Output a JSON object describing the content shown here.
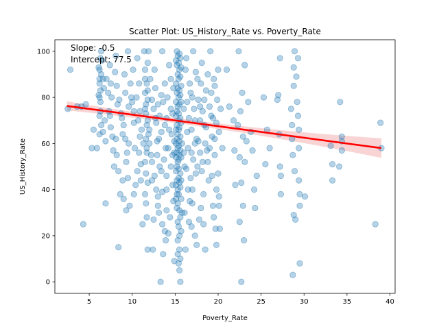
{
  "chart_data": {
    "type": "scatter",
    "title": "Scatter Plot: US_History_Rate vs. Poverty_Rate",
    "xlabel": "Poverty_Rate",
    "ylabel": "US_History_Rate",
    "xlim": [
      1,
      40.6
    ],
    "ylim": [
      -5,
      105
    ],
    "xticks": [
      5,
      10,
      15,
      20,
      25,
      30,
      35,
      40
    ],
    "yticks": [
      0,
      20,
      40,
      60,
      80,
      100
    ],
    "annotations": [
      "Slope: -0.5",
      "Intercept: 77.5"
    ],
    "regression": {
      "slope": -0.5,
      "intercept": 77.5,
      "x_range": [
        2.4,
        39
      ]
    },
    "colors": {
      "points": "#1f77b4",
      "regression_line": "#ff0000",
      "confidence_band": "#f4a9a9"
    },
    "points": [
      [
        2.5,
        75
      ],
      [
        2.8,
        92
      ],
      [
        3.6,
        76
      ],
      [
        4.1,
        76
      ],
      [
        4.3,
        25
      ],
      [
        4.6,
        77
      ],
      [
        5.3,
        58
      ],
      [
        5.5,
        66
      ],
      [
        5.9,
        58
      ],
      [
        6.1,
        93
      ],
      [
        6.2,
        88
      ],
      [
        6.2,
        80
      ],
      [
        6.4,
        100
      ],
      [
        6.5,
        96
      ],
      [
        6.6,
        88
      ],
      [
        6.7,
        84
      ],
      [
        6.3,
        78
      ],
      [
        6.8,
        70
      ],
      [
        6.6,
        65
      ],
      [
        6.9,
        61
      ],
      [
        6.9,
        34
      ],
      [
        7.4,
        94
      ],
      [
        7.5,
        86
      ],
      [
        7.6,
        80
      ],
      [
        7.4,
        72
      ],
      [
        7.5,
        67
      ],
      [
        7.7,
        63
      ],
      [
        7.8,
        57
      ],
      [
        8.1,
        98
      ],
      [
        8.3,
        77
      ],
      [
        8.2,
        55
      ],
      [
        8.4,
        48
      ],
      [
        8.6,
        38
      ],
      [
        8.4,
        15
      ],
      [
        8.8,
        71
      ],
      [
        8.9,
        64
      ],
      [
        9.1,
        90
      ],
      [
        9.2,
        82
      ],
      [
        9.0,
        36
      ],
      [
        9.3,
        31
      ],
      [
        9.5,
        100
      ],
      [
        9.6,
        76
      ],
      [
        9.5,
        45
      ],
      [
        9.7,
        33
      ],
      [
        9.9,
        80
      ],
      [
        10.1,
        92
      ],
      [
        10.2,
        69
      ],
      [
        10.3,
        58
      ],
      [
        10.4,
        42
      ],
      [
        10.6,
        97
      ],
      [
        10.8,
        86
      ],
      [
        10.9,
        63
      ],
      [
        11.0,
        51
      ],
      [
        11.2,
        25
      ],
      [
        11.4,
        100
      ],
      [
        11.5,
        75
      ],
      [
        11.5,
        38
      ],
      [
        11.8,
        83
      ],
      [
        11.8,
        14
      ],
      [
        12.0,
        66
      ],
      [
        12.2,
        55
      ],
      [
        12.3,
        44
      ],
      [
        12.4,
        14
      ],
      [
        12.6,
        92
      ],
      [
        12.7,
        71
      ],
      [
        12.9,
        61
      ],
      [
        13.0,
        37
      ],
      [
        13.1,
        30
      ],
      [
        13.2,
        50
      ],
      [
        13.3,
        0
      ],
      [
        13.4,
        81
      ],
      [
        13.5,
        100
      ],
      [
        13.5,
        25
      ],
      [
        13.6,
        12
      ],
      [
        13.8,
        68
      ],
      [
        13.9,
        58
      ],
      [
        14.0,
        40
      ],
      [
        14.2,
        21
      ],
      [
        14.3,
        94
      ],
      [
        14.5,
        75
      ],
      [
        14.6,
        64
      ],
      [
        14.7,
        55
      ],
      [
        14.8,
        35
      ],
      [
        14.9,
        9
      ],
      [
        15.2,
        100
      ],
      [
        15.3,
        90
      ],
      [
        15.4,
        70
      ],
      [
        15.4,
        45
      ],
      [
        15.5,
        20
      ],
      [
        15.6,
        0
      ],
      [
        15.7,
        85
      ],
      [
        15.8,
        60
      ],
      [
        15.8,
        30
      ],
      [
        16.0,
        75
      ],
      [
        16.1,
        50
      ],
      [
        16.2,
        14
      ],
      [
        16.3,
        97
      ],
      [
        16.4,
        65
      ],
      [
        16.5,
        40
      ],
      [
        16.6,
        26
      ],
      [
        16.8,
        82
      ],
      [
        16.9,
        56
      ],
      [
        17.0,
        34
      ],
      [
        17.1,
        100
      ],
      [
        17.3,
        70
      ],
      [
        17.4,
        47
      ],
      [
        17.5,
        16
      ],
      [
        17.6,
        88
      ],
      [
        17.7,
        61
      ],
      [
        17.8,
        27
      ],
      [
        17.9,
        76
      ],
      [
        18.1,
        95
      ],
      [
        18.2,
        52
      ],
      [
        18.3,
        38
      ],
      [
        18.4,
        68
      ],
      [
        18.5,
        14
      ],
      [
        18.6,
        83
      ],
      [
        18.7,
        57
      ],
      [
        18.9,
        44
      ],
      [
        19.1,
        100
      ],
      [
        19.2,
        72
      ],
      [
        19.3,
        63
      ],
      [
        19.4,
        33
      ],
      [
        19.5,
        88
      ],
      [
        19.6,
        55
      ],
      [
        19.7,
        23
      ],
      [
        19.8,
        16
      ],
      [
        19.9,
        79
      ],
      [
        20.0,
        92
      ],
      [
        20.0,
        47
      ],
      [
        20.1,
        65
      ],
      [
        20.1,
        37
      ],
      [
        20.3,
        75
      ],
      [
        20.5,
        58
      ],
      [
        21.0,
        92
      ],
      [
        21.3,
        76
      ],
      [
        21.8,
        70
      ],
      [
        21.9,
        57
      ],
      [
        22.0,
        42
      ],
      [
        22.3,
        68
      ],
      [
        22.4,
        100
      ],
      [
        22.5,
        54
      ],
      [
        22.5,
        26
      ],
      [
        22.6,
        74
      ],
      [
        22.7,
        43
      ],
      [
        22.7,
        0
      ],
      [
        22.8,
        82
      ],
      [
        22.9,
        63
      ],
      [
        22.9,
        33
      ],
      [
        23.0,
        18
      ],
      [
        23.1,
        94
      ],
      [
        23.1,
        52
      ],
      [
        23.3,
        61
      ],
      [
        23.5,
        78
      ],
      [
        23.8,
        65
      ],
      [
        24.0,
        57
      ],
      [
        24.2,
        40
      ],
      [
        24.3,
        32
      ],
      [
        24.5,
        46
      ],
      [
        25.3,
        80
      ],
      [
        25.5,
        51
      ],
      [
        25.7,
        66
      ],
      [
        26.0,
        58
      ],
      [
        26.9,
        79
      ],
      [
        27.0,
        81
      ],
      [
        27.1,
        64
      ],
      [
        27.2,
        50
      ],
      [
        27.2,
        97
      ],
      [
        27.3,
        46
      ],
      [
        27.3,
        38
      ],
      [
        28.5,
        75
      ],
      [
        28.6,
        68
      ],
      [
        28.6,
        62
      ],
      [
        28.7,
        55
      ],
      [
        28.7,
        3
      ],
      [
        28.8,
        29
      ],
      [
        28.8,
        93
      ],
      [
        28.8,
        85
      ],
      [
        28.9,
        48
      ],
      [
        28.9,
        100
      ],
      [
        29.0,
        27
      ],
      [
        29.1,
        89
      ],
      [
        29.2,
        78
      ],
      [
        29.3,
        97
      ],
      [
        29.3,
        72
      ],
      [
        29.4,
        66
      ],
      [
        29.4,
        58
      ],
      [
        29.4,
        44
      ],
      [
        29.5,
        38
      ],
      [
        29.5,
        33
      ],
      [
        29.5,
        8
      ],
      [
        30.1,
        37
      ],
      [
        33.1,
        59
      ],
      [
        33.3,
        44
      ],
      [
        33.3,
        51
      ],
      [
        34.1,
        50
      ],
      [
        34.2,
        78
      ],
      [
        34.4,
        63
      ],
      [
        34.4,
        61
      ],
      [
        34.4,
        57
      ],
      [
        38.3,
        25
      ],
      [
        38.9,
        69
      ],
      [
        39.0,
        58
      ],
      [
        6.2,
        92
      ],
      [
        6.2,
        72
      ],
      [
        6.2,
        86
      ],
      [
        6.3,
        97
      ],
      [
        6.3,
        83
      ],
      [
        6.3,
        74
      ],
      [
        6.4,
        90
      ],
      [
        6.4,
        68
      ],
      [
        6.1,
        81
      ],
      [
        6.2,
        64
      ],
      [
        11.5,
        88
      ],
      [
        11.5,
        82
      ],
      [
        11.6,
        77
      ],
      [
        11.6,
        73
      ],
      [
        11.7,
        68
      ],
      [
        11.6,
        62
      ],
      [
        11.7,
        58
      ],
      [
        11.5,
        52
      ],
      [
        11.6,
        47
      ],
      [
        11.5,
        92
      ],
      [
        11.8,
        95
      ],
      [
        11.7,
        86
      ],
      [
        11.8,
        79
      ],
      [
        11.8,
        70
      ],
      [
        11.9,
        64
      ],
      [
        11.7,
        56
      ],
      [
        11.8,
        43
      ],
      [
        11.6,
        34
      ],
      [
        11.7,
        28
      ],
      [
        11.9,
        100
      ],
      [
        15.1,
        96
      ],
      [
        15.1,
        86
      ],
      [
        15.1,
        78
      ],
      [
        15.1,
        72
      ],
      [
        15.1,
        66
      ],
      [
        15.1,
        60
      ],
      [
        15.1,
        54
      ],
      [
        15.1,
        48
      ],
      [
        15.1,
        42
      ],
      [
        15.1,
        36
      ],
      [
        15.2,
        94
      ],
      [
        15.2,
        82
      ],
      [
        15.2,
        74
      ],
      [
        15.2,
        68
      ],
      [
        15.2,
        62
      ],
      [
        15.2,
        56
      ],
      [
        15.2,
        50
      ],
      [
        15.2,
        44
      ],
      [
        15.2,
        38
      ],
      [
        15.2,
        32
      ],
      [
        15.3,
        98
      ],
      [
        15.3,
        84
      ],
      [
        15.3,
        76
      ],
      [
        15.3,
        64
      ],
      [
        15.3,
        58
      ],
      [
        15.3,
        52
      ],
      [
        15.3,
        40
      ],
      [
        15.3,
        34
      ],
      [
        15.3,
        26
      ],
      [
        15.3,
        18
      ],
      [
        15.4,
        95
      ],
      [
        15.4,
        88
      ],
      [
        15.4,
        80
      ],
      [
        15.4,
        73
      ],
      [
        15.4,
        66
      ],
      [
        15.4,
        59
      ],
      [
        15.4,
        53
      ],
      [
        15.4,
        49
      ],
      [
        15.4,
        38
      ],
      [
        15.4,
        24
      ],
      [
        15.5,
        99
      ],
      [
        15.5,
        92
      ],
      [
        15.5,
        83
      ],
      [
        15.5,
        77
      ],
      [
        15.5,
        67
      ],
      [
        15.5,
        61
      ],
      [
        15.5,
        55
      ],
      [
        15.5,
        43
      ],
      [
        15.5,
        31
      ],
      [
        15.5,
        14
      ],
      [
        15.6,
        97
      ],
      [
        15.6,
        89
      ],
      [
        15.6,
        81
      ],
      [
        15.6,
        71
      ],
      [
        15.6,
        63
      ],
      [
        15.6,
        57
      ],
      [
        15.6,
        47
      ],
      [
        15.6,
        41
      ],
      [
        15.6,
        28
      ],
      [
        15.6,
        10
      ],
      [
        15.7,
        93
      ],
      [
        15.7,
        78
      ],
      [
        15.7,
        69
      ],
      [
        15.7,
        54
      ],
      [
        15.7,
        44
      ],
      [
        15.7,
        36
      ],
      [
        15.7,
        22
      ],
      [
        15.4,
        8
      ],
      [
        15.3,
        12
      ],
      [
        15.5,
        5
      ],
      [
        7.0,
        88
      ],
      [
        7.2,
        82
      ],
      [
        7.3,
        74
      ],
      [
        8.0,
        91
      ],
      [
        8.2,
        85
      ],
      [
        8.5,
        79
      ],
      [
        8.7,
        73
      ],
      [
        9.0,
        68
      ],
      [
        9.2,
        62
      ],
      [
        9.4,
        56
      ],
      [
        9.8,
        86
      ],
      [
        10.0,
        78
      ],
      [
        10.2,
        74
      ],
      [
        10.5,
        80
      ],
      [
        10.7,
        70
      ],
      [
        10.9,
        74
      ],
      [
        11.1,
        66
      ],
      [
        11.3,
        60
      ],
      [
        12.1,
        88
      ],
      [
        12.3,
        79
      ],
      [
        12.5,
        75
      ],
      [
        12.7,
        84
      ],
      [
        12.8,
        69
      ],
      [
        13.0,
        77
      ],
      [
        13.2,
        72
      ],
      [
        13.4,
        65
      ],
      [
        13.6,
        78
      ],
      [
        13.8,
        86
      ],
      [
        14.0,
        71
      ],
      [
        14.1,
        80
      ],
      [
        14.3,
        66
      ],
      [
        14.5,
        88
      ],
      [
        14.7,
        73
      ],
      [
        14.8,
        84
      ],
      [
        14.9,
        61
      ],
      [
        16.2,
        92
      ],
      [
        16.4,
        78
      ],
      [
        16.6,
        71
      ],
      [
        16.7,
        86
      ],
      [
        16.9,
        66
      ],
      [
        17.0,
        80
      ],
      [
        17.2,
        75
      ],
      [
        17.4,
        91
      ],
      [
        17.5,
        62
      ],
      [
        17.7,
        79
      ],
      [
        17.9,
        70
      ],
      [
        18.0,
        86
      ],
      [
        18.2,
        74
      ],
      [
        18.4,
        79
      ],
      [
        18.6,
        67
      ],
      [
        18.8,
        90
      ],
      [
        19.0,
        76
      ],
      [
        19.2,
        82
      ],
      [
        19.4,
        71
      ],
      [
        19.6,
        85
      ],
      [
        19.8,
        69
      ],
      [
        16.0,
        56
      ],
      [
        16.3,
        49
      ],
      [
        16.5,
        58
      ],
      [
        16.8,
        45
      ],
      [
        17.1,
        53
      ],
      [
        17.3,
        60
      ],
      [
        17.6,
        50
      ],
      [
        17.9,
        56
      ],
      [
        18.1,
        48
      ],
      [
        18.5,
        60
      ],
      [
        18.8,
        52
      ],
      [
        19.0,
        58
      ],
      [
        19.3,
        46
      ],
      [
        19.6,
        62
      ],
      [
        12.0,
        60
      ],
      [
        12.3,
        52
      ],
      [
        12.6,
        46
      ],
      [
        12.9,
        55
      ],
      [
        13.1,
        62
      ],
      [
        13.4,
        48
      ],
      [
        13.7,
        53
      ],
      [
        14.0,
        46
      ],
      [
        14.2,
        58
      ],
      [
        14.5,
        50
      ],
      [
        14.7,
        42
      ],
      [
        14.9,
        56
      ],
      [
        13.0,
        33
      ],
      [
        13.5,
        39
      ],
      [
        14.0,
        31
      ],
      [
        14.4,
        28
      ],
      [
        12.5,
        27
      ],
      [
        13.8,
        22
      ],
      [
        10.2,
        38
      ],
      [
        10.6,
        48
      ],
      [
        9.3,
        52
      ],
      [
        9.6,
        60
      ],
      [
        8.9,
        44
      ],
      [
        8.1,
        62
      ],
      [
        7.9,
        50
      ],
      [
        10.8,
        56
      ],
      [
        11.0,
        44
      ],
      [
        12.8,
        40
      ],
      [
        16.7,
        35
      ],
      [
        17.0,
        40
      ],
      [
        16.1,
        30
      ],
      [
        18.0,
        32
      ],
      [
        18.3,
        25
      ],
      [
        19.8,
        40
      ],
      [
        20.1,
        33
      ],
      [
        20.2,
        23
      ],
      [
        19.5,
        28
      ],
      [
        17.3,
        20
      ],
      [
        16.9,
        24
      ],
      [
        13.9,
        18
      ]
    ]
  }
}
